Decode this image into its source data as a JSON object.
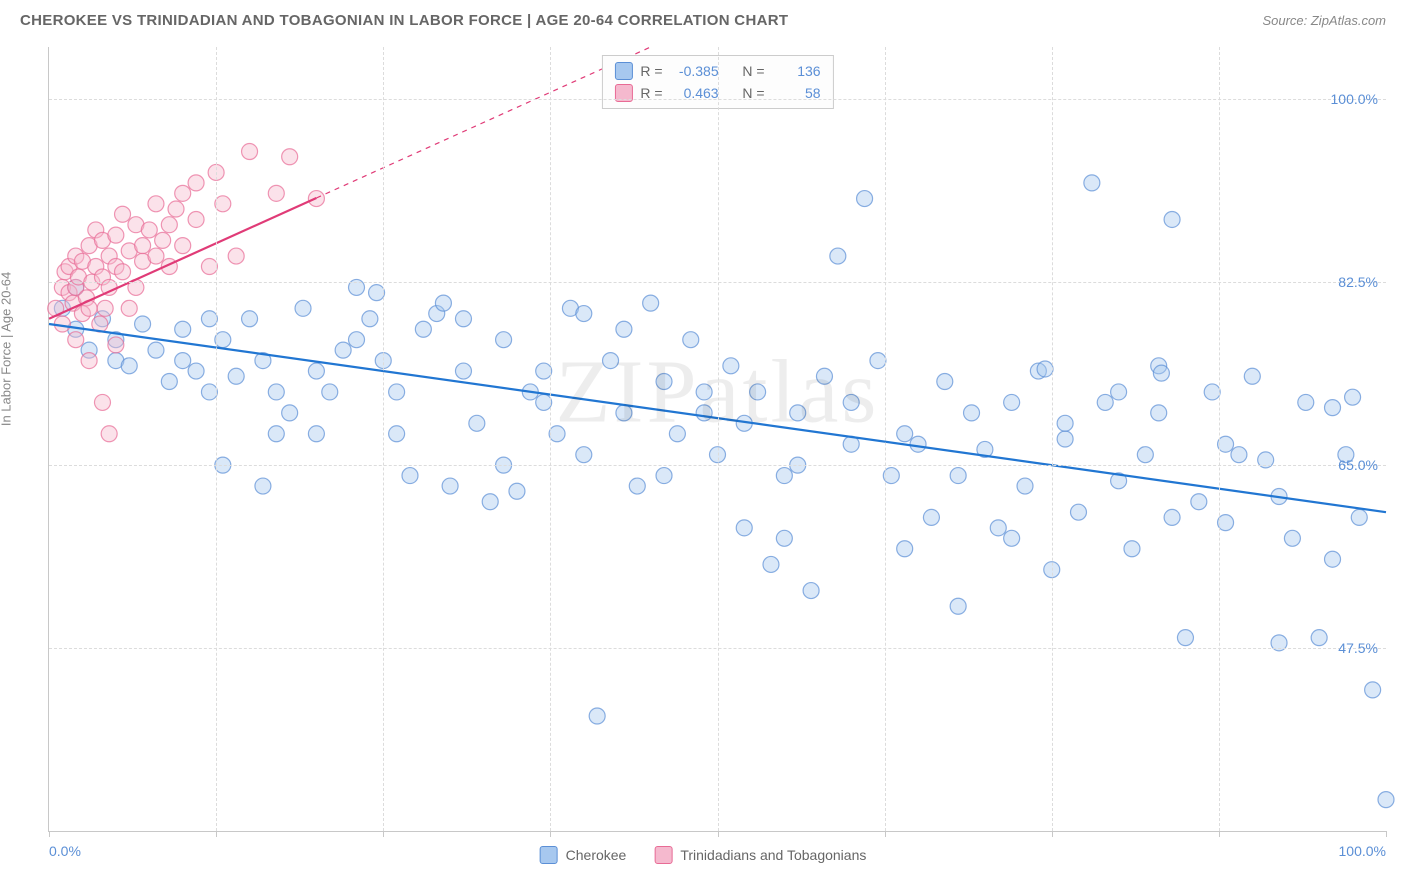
{
  "title": "CHEROKEE VS TRINIDADIAN AND TOBAGONIAN IN LABOR FORCE | AGE 20-64 CORRELATION CHART",
  "source_label": "Source: ZipAtlas.com",
  "ylabel": "In Labor Force | Age 20-64",
  "watermark": "ZIPatlas",
  "chart": {
    "type": "scatter",
    "background_color": "#ffffff",
    "grid_color": "#dcdcdc",
    "axis_color": "#c8c8c8",
    "tick_label_color": "#5b8fd6",
    "xlim": [
      0,
      100
    ],
    "ylim": [
      30,
      105
    ],
    "xticks": [
      0,
      12.5,
      25,
      37.5,
      50,
      62.5,
      75,
      87.5,
      100
    ],
    "xtick_labels": {
      "0": "0.0%",
      "100": "100.0%"
    },
    "yticks": [
      47.5,
      65.0,
      82.5,
      100.0
    ],
    "ytick_labels": [
      "47.5%",
      "65.0%",
      "82.5%",
      "100.0%"
    ],
    "marker_radius": 8,
    "marker_opacity": 0.42,
    "marker_stroke_width": 1.2,
    "series": [
      {
        "name": "Cherokee",
        "color_fill": "#a7c8ef",
        "color_stroke": "#5b8fd6",
        "R": -0.385,
        "N": 136,
        "trend": {
          "x1": 0,
          "y1": 78.5,
          "x2": 100,
          "y2": 60.5,
          "solid_until_x": 100,
          "color": "#2176d2",
          "width": 2.2
        },
        "points": [
          [
            1,
            80
          ],
          [
            2,
            78
          ],
          [
            2,
            82
          ],
          [
            3,
            76
          ],
          [
            4,
            79
          ],
          [
            5,
            75
          ],
          [
            5,
            77
          ],
          [
            6,
            74.5
          ],
          [
            7,
            78.5
          ],
          [
            8,
            76
          ],
          [
            9,
            73
          ],
          [
            10,
            75
          ],
          [
            10,
            78
          ],
          [
            11,
            74
          ],
          [
            12,
            72
          ],
          [
            12,
            79
          ],
          [
            13,
            65
          ],
          [
            14,
            73.5
          ],
          [
            15,
            79
          ],
          [
            16,
            75
          ],
          [
            16,
            63
          ],
          [
            17,
            72
          ],
          [
            18,
            70
          ],
          [
            19,
            80
          ],
          [
            20,
            68
          ],
          [
            21,
            72
          ],
          [
            22,
            76
          ],
          [
            23,
            82
          ],
          [
            24,
            79
          ],
          [
            24.5,
            81.5
          ],
          [
            25,
            75
          ],
          [
            26,
            72
          ],
          [
            27,
            64
          ],
          [
            28,
            78
          ],
          [
            29,
            79.5
          ],
          [
            29.5,
            80.5
          ],
          [
            30,
            63
          ],
          [
            31,
            74
          ],
          [
            32,
            69
          ],
          [
            33,
            61.5
          ],
          [
            34,
            77
          ],
          [
            35,
            62.5
          ],
          [
            36,
            72
          ],
          [
            37,
            71
          ],
          [
            38,
            68
          ],
          [
            39,
            80
          ],
          [
            40,
            79.5
          ],
          [
            41,
            41
          ],
          [
            42,
            75
          ],
          [
            43,
            70
          ],
          [
            44,
            63
          ],
          [
            45,
            80.5
          ],
          [
            46,
            73
          ],
          [
            47,
            68
          ],
          [
            48,
            77
          ],
          [
            49,
            70
          ],
          [
            50,
            66
          ],
          [
            51,
            74.5
          ],
          [
            52,
            69
          ],
          [
            53,
            72
          ],
          [
            54,
            55.5
          ],
          [
            55,
            64
          ],
          [
            55,
            58
          ],
          [
            56,
            70
          ],
          [
            57,
            53
          ],
          [
            58,
            73.5
          ],
          [
            59,
            85
          ],
          [
            60,
            67
          ],
          [
            61,
            90.5
          ],
          [
            62,
            75
          ],
          [
            63,
            64
          ],
          [
            64,
            57
          ],
          [
            65,
            67
          ],
          [
            66,
            60
          ],
          [
            67,
            73
          ],
          [
            68,
            51.5
          ],
          [
            69,
            70
          ],
          [
            70,
            66.5
          ],
          [
            71,
            59
          ],
          [
            72,
            71
          ],
          [
            73,
            63
          ],
          [
            74,
            74
          ],
          [
            74.5,
            74.2
          ],
          [
            75,
            55
          ],
          [
            76,
            67.5
          ],
          [
            77,
            60.5
          ],
          [
            78,
            92
          ],
          [
            79,
            71
          ],
          [
            80,
            63.5
          ],
          [
            81,
            57
          ],
          [
            82,
            66
          ],
          [
            83,
            74.5
          ],
          [
            83,
            70
          ],
          [
            83.2,
            73.8
          ],
          [
            84,
            88.5
          ],
          [
            85,
            48.5
          ],
          [
            86,
            61.5
          ],
          [
            87,
            72
          ],
          [
            88,
            59.5
          ],
          [
            89,
            66
          ],
          [
            90,
            73.5
          ],
          [
            91,
            65.5
          ],
          [
            92,
            48
          ],
          [
            93,
            58
          ],
          [
            95,
            48.5
          ],
          [
            94,
            71
          ],
          [
            96,
            70.5
          ],
          [
            97,
            66
          ],
          [
            97.5,
            71.5
          ],
          [
            98,
            60
          ],
          [
            99,
            43.5
          ],
          [
            100,
            33
          ],
          [
            13,
            77
          ],
          [
            17,
            68
          ],
          [
            20,
            74
          ],
          [
            23,
            77
          ],
          [
            26,
            68
          ],
          [
            31,
            79
          ],
          [
            34,
            65
          ],
          [
            37,
            74
          ],
          [
            40,
            66
          ],
          [
            43,
            78
          ],
          [
            46,
            64
          ],
          [
            49,
            72
          ],
          [
            52,
            59
          ],
          [
            56,
            65
          ],
          [
            60,
            71
          ],
          [
            64,
            68
          ],
          [
            68,
            64
          ],
          [
            72,
            58
          ],
          [
            76,
            69
          ],
          [
            80,
            72
          ],
          [
            84,
            60
          ],
          [
            88,
            67
          ],
          [
            92,
            62
          ],
          [
            96,
            56
          ]
        ]
      },
      {
        "name": "Trinidadians and Tobagonians",
        "color_fill": "#f5b9ce",
        "color_stroke": "#e86b95",
        "R": 0.463,
        "N": 58,
        "trend": {
          "x1": 0,
          "y1": 79,
          "x2": 45,
          "y2": 105,
          "solid_until_x": 20,
          "color": "#e03b77",
          "width": 2.2
        },
        "points": [
          [
            0.5,
            80
          ],
          [
            1,
            82
          ],
          [
            1,
            78.5
          ],
          [
            1.2,
            83.5
          ],
          [
            1.5,
            81.5
          ],
          [
            1.5,
            84
          ],
          [
            1.8,
            80.5
          ],
          [
            2,
            82
          ],
          [
            2,
            85
          ],
          [
            2,
            77
          ],
          [
            2.2,
            83
          ],
          [
            2.5,
            84.5
          ],
          [
            2.5,
            79.5
          ],
          [
            2.8,
            81
          ],
          [
            3,
            86
          ],
          [
            3,
            80
          ],
          [
            3,
            75
          ],
          [
            3.2,
            82.5
          ],
          [
            3.5,
            84
          ],
          [
            3.5,
            87.5
          ],
          [
            3.8,
            78.5
          ],
          [
            4,
            83
          ],
          [
            4,
            86.5
          ],
          [
            4,
            71
          ],
          [
            4.2,
            80
          ],
          [
            4.5,
            85
          ],
          [
            4.5,
            82
          ],
          [
            4.5,
            68
          ],
          [
            5,
            84
          ],
          [
            5,
            87
          ],
          [
            5,
            76.5
          ],
          [
            5.5,
            83.5
          ],
          [
            5.5,
            89
          ],
          [
            6,
            85.5
          ],
          [
            6,
            80
          ],
          [
            6.5,
            88
          ],
          [
            6.5,
            82
          ],
          [
            7,
            86
          ],
          [
            7,
            84.5
          ],
          [
            7.5,
            87.5
          ],
          [
            8,
            85
          ],
          [
            8,
            90
          ],
          [
            8.5,
            86.5
          ],
          [
            9,
            88
          ],
          [
            9,
            84
          ],
          [
            9.5,
            89.5
          ],
          [
            10,
            91
          ],
          [
            10,
            86
          ],
          [
            11,
            92
          ],
          [
            11,
            88.5
          ],
          [
            12,
            84
          ],
          [
            12.5,
            93
          ],
          [
            13,
            90
          ],
          [
            14,
            85
          ],
          [
            15,
            95
          ],
          [
            17,
            91
          ],
          [
            18,
            94.5
          ],
          [
            20,
            90.5
          ]
        ]
      }
    ]
  },
  "legend_top": {
    "rows": [
      {
        "swatch_fill": "#a7c8ef",
        "swatch_stroke": "#5b8fd6",
        "r_label": "R =",
        "r_value": "-0.385",
        "n_label": "N =",
        "n_value": "136"
      },
      {
        "swatch_fill": "#f5b9ce",
        "swatch_stroke": "#e86b95",
        "r_label": "R =",
        "r_value": "0.463",
        "n_label": "N =",
        "n_value": "58"
      }
    ]
  },
  "legend_bottom": {
    "items": [
      {
        "swatch_fill": "#a7c8ef",
        "swatch_stroke": "#5b8fd6",
        "label": "Cherokee"
      },
      {
        "swatch_fill": "#f5b9ce",
        "swatch_stroke": "#e86b95",
        "label": "Trinidadians and Tobagonians"
      }
    ]
  }
}
